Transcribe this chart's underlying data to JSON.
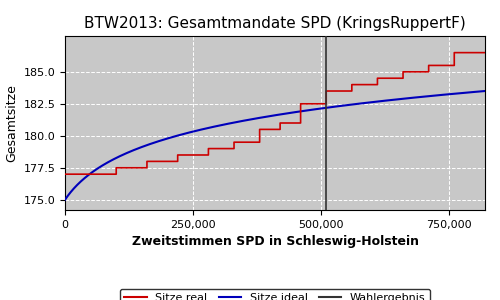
{
  "title": "BTW2013: Gesamtmandate SPD (KringsRuppertF)",
  "xlabel": "Zweitstimmen SPD in Schleswig-Holstein",
  "ylabel": "Gesamtsitze",
  "xlim": [
    0,
    820000
  ],
  "ylim": [
    174.2,
    187.8
  ],
  "wahlergebnis_x": 510000,
  "bg_color": "#c8c8c8",
  "fig_bg_color": "#ffffff",
  "line_real_color": "#cc0000",
  "line_ideal_color": "#0000bb",
  "line_wahlerg_color": "#333333",
  "legend_labels": [
    "Sitze real",
    "Sitze ideal",
    "Wahlergebnis"
  ],
  "yticks": [
    175.0,
    177.5,
    180.0,
    182.5,
    185.0
  ],
  "xticks": [
    0,
    250000,
    500000,
    750000
  ],
  "real_steps_x": [
    0,
    100000,
    100001,
    160000,
    160001,
    220000,
    220001,
    280000,
    280001,
    330000,
    330001,
    380000,
    380001,
    420000,
    420001,
    460000,
    460001,
    510000,
    510001,
    560000,
    560001,
    610000,
    610001,
    660000,
    660001,
    710000,
    710001,
    760000,
    760001,
    820000
  ],
  "real_steps_y": [
    177.0,
    177.0,
    177.5,
    177.5,
    178.0,
    178.0,
    178.5,
    178.5,
    179.0,
    179.0,
    179.5,
    179.5,
    180.5,
    180.5,
    181.0,
    181.0,
    182.5,
    182.5,
    183.5,
    183.5,
    184.0,
    184.0,
    184.5,
    184.5,
    185.0,
    185.0,
    185.5,
    185.5,
    186.5,
    186.5
  ],
  "ideal_y_start": 175.0,
  "ideal_y_end": 183.5,
  "ideal_x_flat_end": 100000,
  "grid_color": "#ffffff",
  "grid_style": "--",
  "title_fontsize": 11,
  "label_fontsize": 9,
  "tick_fontsize": 8
}
